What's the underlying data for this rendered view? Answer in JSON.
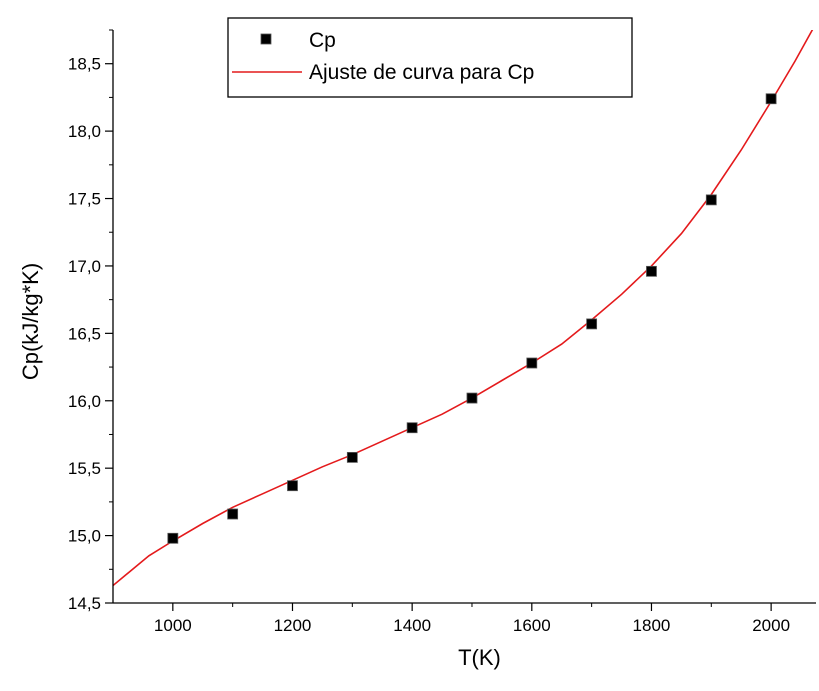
{
  "chart_data": {
    "type": "scatter",
    "xlabel": "T(K)",
    "ylabel": "Cp(kJ/kg*K)",
    "xlim": [
      900,
      2075
    ],
    "ylim": [
      14.5,
      18.75
    ],
    "x_ticks": [
      1000,
      1200,
      1400,
      1600,
      1800,
      2000
    ],
    "x_minor_ticks": [
      1100,
      1300,
      1500,
      1700,
      1900
    ],
    "y_ticks": [
      14.5,
      15.0,
      15.5,
      16.0,
      16.5,
      17.0,
      17.5,
      18.0,
      18.5
    ],
    "y_tick_labels": [
      "14,5",
      "15,0",
      "15,5",
      "16,0",
      "16,5",
      "17,0",
      "17,5",
      "18,0",
      "18,5"
    ],
    "x_tick_labels": [
      "1000",
      "1200",
      "1400",
      "1600",
      "1800",
      "2000"
    ],
    "grid": false,
    "legend_position": "top-center",
    "series": [
      {
        "name": "Cp",
        "kind": "scatter",
        "marker": "square",
        "color": "#000000",
        "x": [
          1000,
          1100,
          1200,
          1300,
          1400,
          1500,
          1600,
          1700,
          1800,
          1900,
          2000
        ],
        "y": [
          14.98,
          15.16,
          15.37,
          15.58,
          15.8,
          16.02,
          16.28,
          16.57,
          16.96,
          17.49,
          18.24
        ]
      },
      {
        "name": "Ajuste de curva para Cp",
        "kind": "line",
        "color": "#e41a1c",
        "x": [
          900,
          960,
          1000,
          1050,
          1100,
          1150,
          1200,
          1250,
          1300,
          1350,
          1400,
          1450,
          1500,
          1550,
          1600,
          1650,
          1700,
          1750,
          1800,
          1850,
          1900,
          1950,
          2000,
          2040,
          2070
        ],
        "y": [
          14.63,
          14.85,
          14.96,
          15.09,
          15.21,
          15.31,
          15.41,
          15.51,
          15.6,
          15.7,
          15.8,
          15.9,
          16.02,
          16.15,
          16.28,
          16.42,
          16.6,
          16.79,
          17.0,
          17.24,
          17.53,
          17.86,
          18.22,
          18.52,
          18.76
        ]
      }
    ]
  }
}
